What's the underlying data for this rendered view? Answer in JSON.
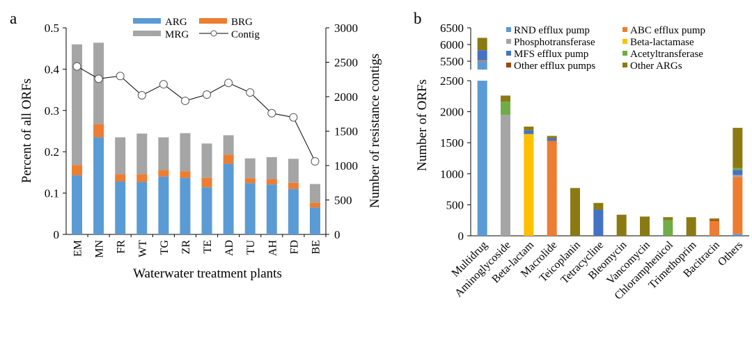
{
  "colors": {
    "ARG": "#5b9bd5",
    "BRG": "#ed7d31",
    "MRG": "#a5a5a5",
    "contig_line": "#000000",
    "RND": "#5b9bd5",
    "ABC": "#ed7d31",
    "Phospho": "#a5a5a5",
    "Beta": "#ffc000",
    "MFS": "#4472c4",
    "Acetyl": "#70ad47",
    "OtherEff": "#9e480e",
    "OtherARG": "#8b7a12"
  },
  "chart_data": [
    {
      "type": "bar",
      "panel_label": "a",
      "title": "",
      "xlabel": "Waterwater treatment plants",
      "ylabel": "Percent of all ORFs",
      "y2label": "Number of resistance contigs",
      "ylim": [
        0,
        0.5
      ],
      "y2lim": [
        0,
        3000
      ],
      "y_ticks": [
        "0",
        "0.1",
        "0.2",
        "0.3",
        "0.4",
        "0.5"
      ],
      "y2_ticks": [
        "0",
        "500",
        "1000",
        "1500",
        "2000",
        "2500",
        "3000"
      ],
      "categories": [
        "EM",
        "MN",
        "FR",
        "WT",
        "TG",
        "ZR",
        "TE",
        "AD",
        "TU",
        "AH",
        "FD",
        "BE"
      ],
      "stacked": true,
      "legend": [
        "ARG",
        "BRG",
        "MRG",
        "Contig"
      ],
      "series": [
        {
          "name": "ARG",
          "values": [
            0.143,
            0.235,
            0.128,
            0.127,
            0.14,
            0.137,
            0.114,
            0.171,
            0.124,
            0.121,
            0.11,
            0.065
          ]
        },
        {
          "name": "BRG",
          "values": [
            0.025,
            0.032,
            0.018,
            0.019,
            0.016,
            0.016,
            0.023,
            0.022,
            0.012,
            0.013,
            0.015,
            0.012
          ]
        },
        {
          "name": "MRG",
          "values": [
            0.292,
            0.197,
            0.089,
            0.098,
            0.079,
            0.092,
            0.083,
            0.047,
            0.048,
            0.053,
            0.058,
            0.045
          ]
        }
      ],
      "line": {
        "name": "Contig",
        "axis": "right",
        "values": [
          2440,
          2260,
          2300,
          2020,
          2180,
          1940,
          2030,
          2200,
          2060,
          1760,
          1700,
          1060
        ]
      }
    },
    {
      "type": "bar",
      "panel_label": "b",
      "title": "",
      "xlabel": "",
      "ylabel": "Number of ORFs",
      "ylim_lower": [
        0,
        2500
      ],
      "ylim_upper": [
        5250,
        6500
      ],
      "y_ticks_lower": [
        "0",
        "500",
        "1000",
        "1500",
        "2000",
        "2500"
      ],
      "y_ticks_upper": [
        "5500",
        "6000",
        "6500"
      ],
      "categories": [
        "Multidrug",
        "Aminoglycoside",
        "Beta-lactam",
        "Macrolide",
        "Teicoplanin",
        "Tetracycline",
        "Bleomycin",
        "Vancomycin",
        "Chloramphenicol",
        "Trimethoprim",
        "Bacitracin",
        "Others"
      ],
      "stacked": true,
      "legend": [
        "RND efflux pump",
        "ABC efflux pump",
        "Phosphotransferase",
        "Beta-lactamase",
        "MFS efflux pump",
        "Acetyltransferase",
        "Other efflux pumps",
        "Other ARGs"
      ],
      "series": [
        {
          "name": "RND efflux pump",
          "values": [
            5500,
            0,
            0,
            0,
            0,
            0,
            0,
            0,
            0,
            0,
            0,
            30
          ]
        },
        {
          "name": "ABC efflux pump",
          "values": [
            30,
            0,
            0,
            1530,
            0,
            0,
            0,
            0,
            0,
            0,
            240,
            920
          ]
        },
        {
          "name": "Phosphotransferase",
          "values": [
            0,
            1950,
            0,
            0,
            0,
            0,
            0,
            0,
            0,
            0,
            0,
            30
          ]
        },
        {
          "name": "Beta-lactamase",
          "values": [
            0,
            0,
            1640,
            0,
            0,
            0,
            0,
            0,
            0,
            0,
            0,
            0
          ]
        },
        {
          "name": "MFS efflux pump",
          "values": [
            300,
            0,
            60,
            40,
            0,
            420,
            0,
            0,
            0,
            0,
            0,
            80
          ]
        },
        {
          "name": "Acetyltransferase",
          "values": [
            0,
            210,
            0,
            0,
            0,
            0,
            0,
            0,
            250,
            0,
            0,
            30
          ]
        },
        {
          "name": "Other efflux pumps",
          "values": [
            0,
            0,
            0,
            0,
            0,
            0,
            0,
            0,
            0,
            0,
            20,
            0
          ]
        },
        {
          "name": "Other ARGs",
          "values": [
            370,
            100,
            60,
            40,
            770,
            110,
            340,
            310,
            50,
            300,
            20,
            650
          ]
        }
      ]
    }
  ]
}
